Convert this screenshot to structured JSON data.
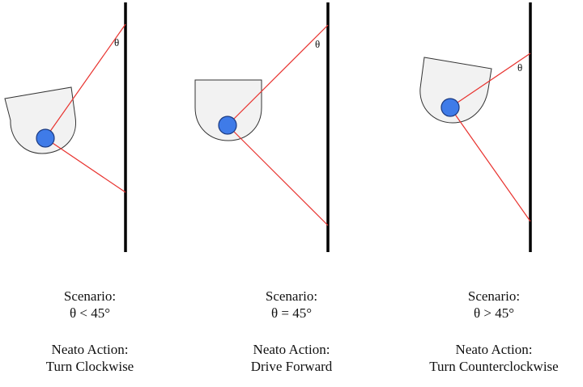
{
  "colors": {
    "wall": "#000000",
    "ray": "#e8322e",
    "robot_body": "#f2f2f2",
    "robot_outline": "#333333",
    "sensor": "#3f7be8",
    "sensor_outline": "#1b3a80"
  },
  "scenarios": [
    {
      "angle_symbol": "θ",
      "scenario_label": "Scenario:",
      "scenario_condition": "θ < 45°",
      "action_label": "Neato Action:",
      "action_value": "Turn Clockwise"
    },
    {
      "angle_symbol": "θ",
      "scenario_label": "Scenario:",
      "scenario_condition": "θ = 45°",
      "action_label": "Neato Action:",
      "action_value": "Drive Forward"
    },
    {
      "angle_symbol": "θ",
      "scenario_label": "Scenario:",
      "scenario_condition": "θ > 45°",
      "action_label": "Neato Action:",
      "action_value": "Turn Counterclockwise"
    }
  ]
}
